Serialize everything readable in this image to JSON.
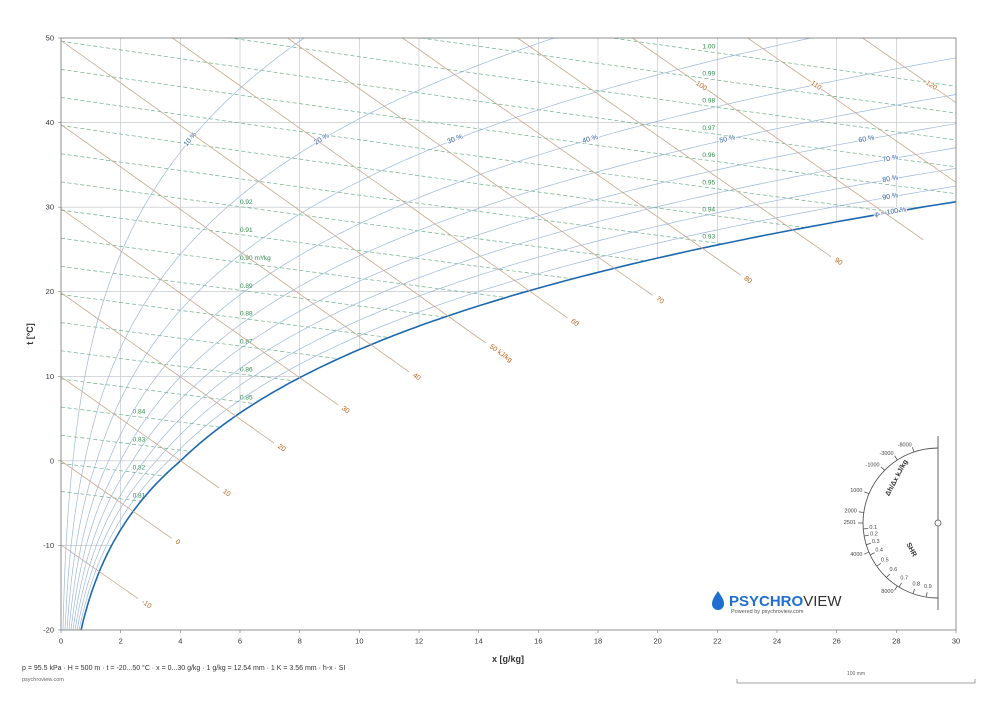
{
  "chart_data": {
    "type": "psychrometric",
    "xlabel": "x [g/kg]",
    "ylabel": "t [°C]",
    "xlim": [
      0,
      30
    ],
    "ylim": [
      -20,
      50
    ],
    "xticks": [
      0,
      2,
      4,
      6,
      8,
      10,
      12,
      14,
      16,
      18,
      20,
      22,
      24,
      26,
      28,
      30
    ],
    "yticks": [
      -20,
      -10,
      0,
      10,
      20,
      30,
      40,
      50
    ],
    "grid": true,
    "relative_humidity": {
      "color": "#9db8dc",
      "saturation_color": "#1c68b0",
      "label_color": "#2a5ca8",
      "values": [
        10,
        20,
        30,
        40,
        50,
        60,
        70,
        80,
        90,
        100
      ],
      "labels": [
        "10 %",
        "20 %",
        "30 %",
        "40 %",
        "50 %",
        "60 %",
        "70 %",
        "80 %",
        "90 %",
        "φ = 100 %"
      ]
    },
    "enthalpy": {
      "color": "#caa78c",
      "label_color": "#c0601a",
      "values": [
        -10,
        0,
        10,
        20,
        30,
        40,
        50,
        60,
        70,
        80,
        90,
        100,
        110,
        120
      ],
      "labels": [
        "-10",
        "0",
        "10",
        "20",
        "30",
        "40",
        "50 kJ/kg",
        "60",
        "70",
        "80",
        "90",
        "100",
        "110",
        "120"
      ]
    },
    "specific_volume": {
      "color": "#6cb08a",
      "label_color": "#2e8a4a",
      "values": [
        0.81,
        0.82,
        0.83,
        0.84,
        0.85,
        0.86,
        0.87,
        0.88,
        0.89,
        0.9,
        0.91,
        0.92,
        0.93,
        0.94,
        0.95,
        0.96,
        0.97,
        0.98,
        0.99,
        1.0
      ],
      "labels": [
        "0.81",
        "0.82",
        "0.83",
        "0.84",
        "0.85",
        "0.86",
        "0.87",
        "0.88",
        "0.89",
        "0.90 m³/kg",
        "0.91",
        "0.92",
        "0.93",
        "0.94",
        "0.95",
        "0.96",
        "0.97",
        "0.98",
        "0.99",
        "1.00"
      ]
    }
  },
  "protractor": {
    "title": "Δh/Δx kJ/kg",
    "ticks": [
      -8000,
      -3000,
      -1000,
      1000,
      2000,
      2501,
      4000,
      8000
    ],
    "shr_label": "SHR",
    "shr_ticks": [
      0.1,
      0.2,
      0.3,
      0.4,
      0.5,
      0.6,
      0.7,
      0.8,
      0.9
    ]
  },
  "logo": {
    "brand_a": "PSYCHRO",
    "brand_b": "VIEW",
    "tagline": "Powered by psychroview.com"
  },
  "footer": {
    "pressure": {
      "value": 95.5,
      "label": "p = 95.5 kPa"
    },
    "text": "· H = 500 m · t = -20...50 °C · x = 0...30 g/kg · 1 g/kg = 12.54 mm · 1 K = 3.56 mm · h-x · SI",
    "site": "psychroview.com"
  },
  "scale_bar": {
    "label": "100 mm"
  }
}
